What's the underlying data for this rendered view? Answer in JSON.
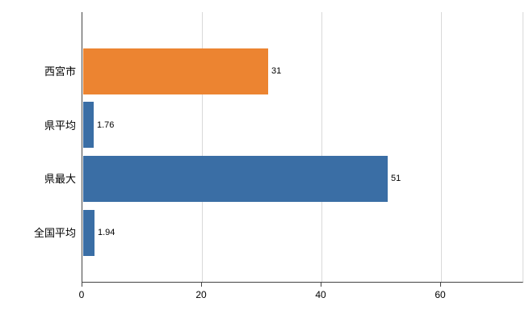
{
  "chart_data": {
    "type": "bar",
    "orientation": "horizontal",
    "title": "",
    "xlabel": "",
    "ylabel": "",
    "categories": [
      "西宮市",
      "県平均",
      "県最大",
      "全国平均"
    ],
    "values": [
      31,
      1.76,
      51,
      1.94
    ],
    "value_labels": [
      "31",
      "1.76",
      "51",
      "1.94"
    ],
    "series": [
      {
        "name": "values",
        "values": [
          31,
          1.76,
          51,
          1.94
        ]
      }
    ],
    "bar_colors": [
      "#EC8431",
      "#3A6EA5",
      "#3A6EA5",
      "#3A6EA5"
    ],
    "x_ticks": [
      0,
      20,
      40,
      60
    ],
    "x_tick_labels": [
      "0",
      "20",
      "40",
      "60"
    ],
    "xlim": [
      0,
      74
    ],
    "grid": true,
    "legend": "none",
    "colors": {
      "orange": "#EC8431",
      "blue": "#3A6EA5",
      "grid": "#d9d9d9",
      "axis": "#444444",
      "text": "#000000",
      "background": "#ffffff"
    }
  }
}
